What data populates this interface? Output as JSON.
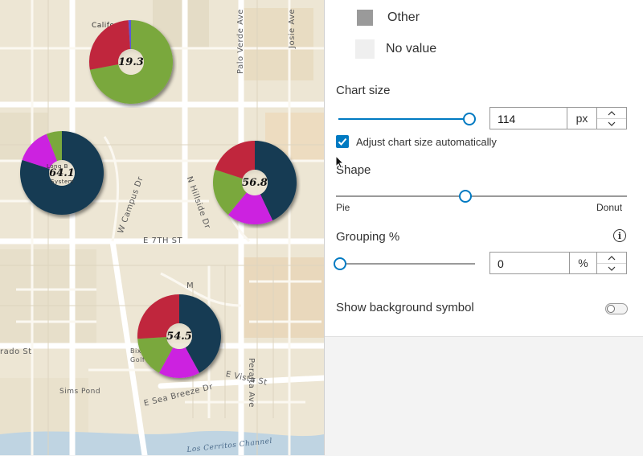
{
  "map": {
    "streets": {
      "palo_verde": "Palo Verde Ave",
      "josie": "Josie Ave",
      "w_campus": "W Campus Dr",
      "n_hillside": "N Hillside Dr",
      "e_7th": "E 7TH ST",
      "peralta": "Peralta Ave",
      "rado": "rado St",
      "e_vista": "E Vista St",
      "e_sea_breeze": "E Sea Breeze Dr",
      "sims_pond": "Sims Pond",
      "cerritos": "Los Cerritos Channel",
      "calif": "Califo",
      "long_beach": "Long B",
      "system": "System",
      "bix": "Bix",
      "golf": "Golf",
      "m_label": "M"
    },
    "charts": [
      {
        "label": "19.3",
        "slices": [
          {
            "value": 0.72,
            "color": "#7aa83e"
          },
          {
            "value": 0.27,
            "color": "#c0283c"
          },
          {
            "value": 0.01,
            "color": "#5a5ad8"
          }
        ]
      },
      {
        "label": "64.1",
        "slices": [
          {
            "value": 0.8,
            "color": "#133a52"
          },
          {
            "value": 0.14,
            "color": "#cc22e0"
          },
          {
            "value": 0.06,
            "color": "#7aa83e"
          }
        ]
      },
      {
        "label": "56.8",
        "slices": [
          {
            "value": 0.43,
            "color": "#133a52"
          },
          {
            "value": 0.18,
            "color": "#cc22e0"
          },
          {
            "value": 0.19,
            "color": "#7aa83e"
          },
          {
            "value": 0.2,
            "color": "#c0283c"
          }
        ]
      },
      {
        "label": "54.5",
        "slices": [
          {
            "value": 0.42,
            "color": "#133a52"
          },
          {
            "value": 0.16,
            "color": "#cc22e0"
          },
          {
            "value": 0.16,
            "color": "#7aa83e"
          },
          {
            "value": 0.26,
            "color": "#c0283c"
          }
        ]
      }
    ]
  },
  "legend": [
    {
      "label": "Other",
      "color": "#9a9a9a"
    },
    {
      "label": "No value",
      "color": "#efefef"
    }
  ],
  "chart_size": {
    "label": "Chart size",
    "value": "114",
    "unit": "px",
    "slider_fraction": 0.98
  },
  "adjust": {
    "label": "Adjust chart size automatically",
    "checked": true
  },
  "shape": {
    "label": "Shape",
    "min_label": "Pie",
    "max_label": "Donut",
    "slider_fraction": 0.45
  },
  "grouping": {
    "label": "Grouping %",
    "value": "0",
    "unit": "%",
    "slider_fraction": 0.0
  },
  "background_symbol": {
    "label": "Show background symbol",
    "enabled": false
  },
  "colors": {
    "accent": "#007ac2"
  }
}
